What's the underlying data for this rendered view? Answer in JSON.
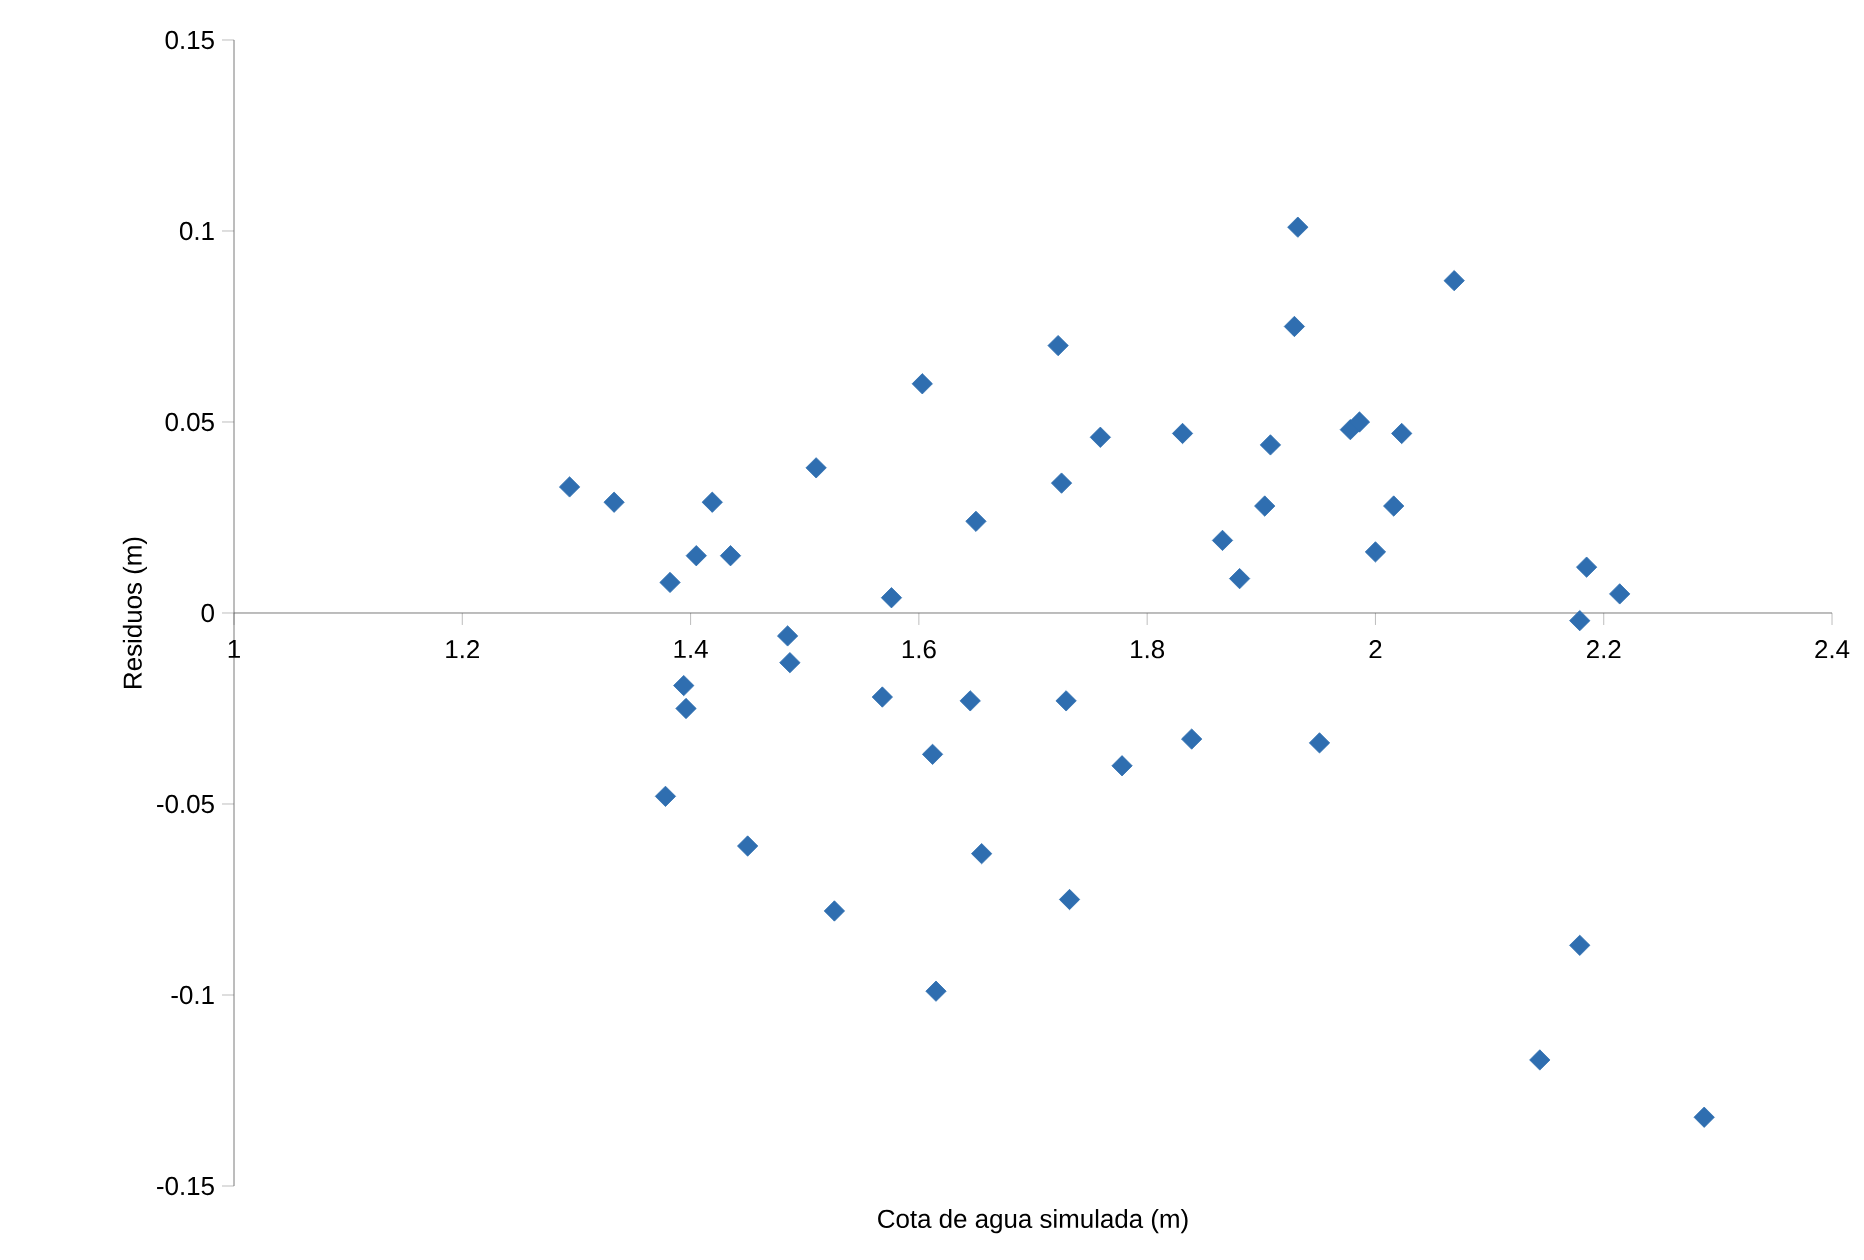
{
  "chart_data": {
    "type": "scatter",
    "xlabel": "Cota de agua simulada (m)",
    "ylabel": "Residuos (m)",
    "xlim": [
      1,
      2.4
    ],
    "ylim": [
      -0.15,
      0.15
    ],
    "xticks": [
      1,
      1.2,
      1.4,
      1.6,
      1.8,
      2,
      2.2,
      2.4
    ],
    "yticks": [
      -0.15,
      -0.1,
      -0.05,
      0,
      0.05,
      0.1,
      0.15
    ],
    "marker": "diamond",
    "series": [
      {
        "color": "#2f6eb0",
        "x": [
          1.294,
          1.333,
          1.382,
          1.405,
          1.419,
          1.435,
          1.51,
          1.576,
          1.603,
          1.65,
          1.722,
          1.725,
          1.759,
          1.831,
          1.866,
          1.881,
          1.908,
          1.903,
          1.932,
          1.929,
          1.978,
          1.986,
          2.023,
          2.016,
          2.0,
          2.069,
          2.185,
          2.214,
          2.179,
          1.485,
          1.487,
          1.394,
          1.396,
          1.568,
          1.645,
          1.729,
          1.612,
          1.778,
          1.839,
          1.951,
          1.378,
          1.45,
          1.655,
          1.526,
          1.732,
          1.615,
          2.179,
          2.144,
          2.288
        ],
        "values": [
          0.033,
          0.029,
          0.008,
          0.015,
          0.029,
          0.015,
          0.038,
          0.004,
          0.06,
          0.024,
          0.07,
          0.034,
          0.046,
          0.047,
          0.019,
          0.009,
          0.044,
          0.028,
          0.101,
          0.075,
          0.048,
          0.05,
          0.047,
          0.028,
          0.016,
          0.087,
          0.012,
          0.005,
          -0.002,
          -0.006,
          -0.013,
          -0.019,
          -0.025,
          -0.022,
          -0.023,
          -0.023,
          -0.037,
          -0.04,
          -0.033,
          -0.034,
          -0.048,
          -0.061,
          -0.063,
          -0.078,
          -0.075,
          -0.099,
          -0.087,
          -0.117,
          -0.132
        ]
      }
    ]
  }
}
